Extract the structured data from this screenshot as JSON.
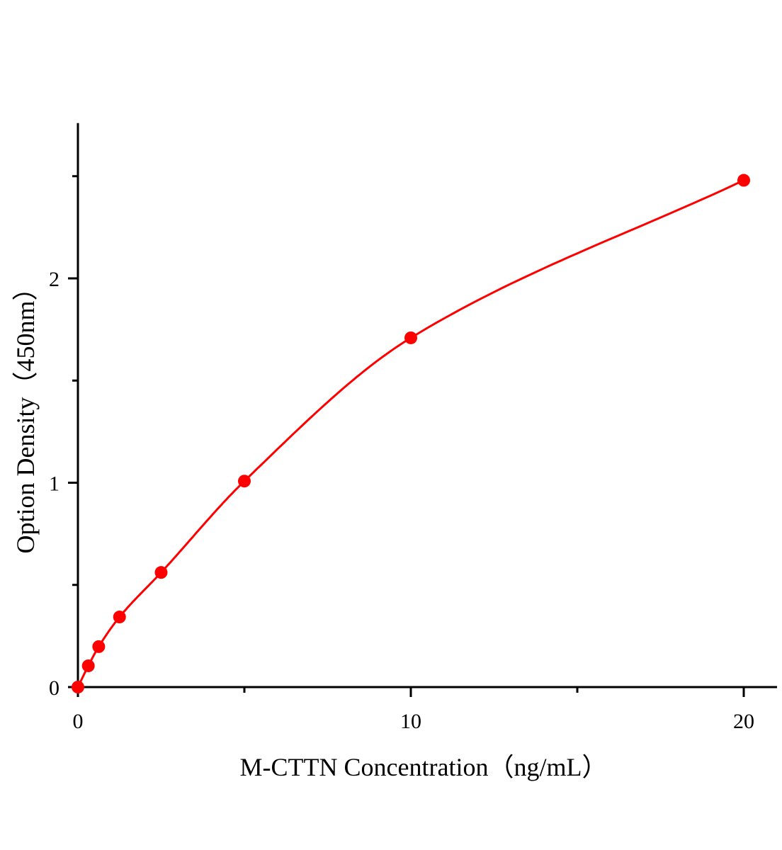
{
  "chart_data": {
    "type": "line",
    "xlabel": "M-CTTN Concentration（ng/mL）",
    "ylabel": "Option Density（450nm）",
    "xlim": [
      0,
      21
    ],
    "ylim": [
      0,
      2.76
    ],
    "x_ticks": [
      0,
      10,
      20
    ],
    "x_tick_labels": [
      "0",
      "10",
      "20"
    ],
    "x_minor_ticks": [
      5,
      15
    ],
    "y_ticks": [
      0,
      1,
      2
    ],
    "y_tick_labels": [
      "0",
      "1",
      "2"
    ],
    "y_minor_ticks": [
      0.5,
      1.5,
      2.5
    ],
    "grid": false,
    "series": [
      {
        "color": "#ff0000",
        "markers": "filled-circle",
        "fit_line": true,
        "x": [
          0,
          0.3125,
          0.625,
          1.25,
          2.5,
          5,
          10,
          20
        ],
        "y": [
          0,
          0.104,
          0.198,
          0.343,
          0.561,
          1.008,
          1.709,
          2.48
        ]
      }
    ]
  }
}
